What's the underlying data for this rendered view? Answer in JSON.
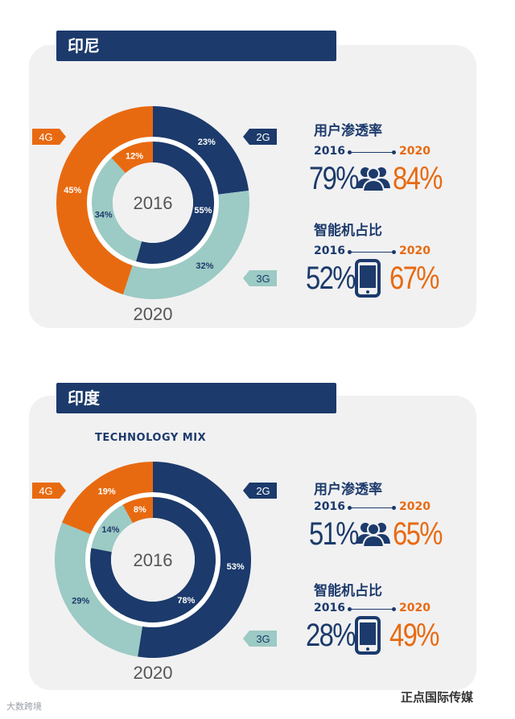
{
  "colors": {
    "navy": "#1c3a6b",
    "orange": "#e86a10",
    "teal": "#9ccac4",
    "panel": "#f1f1f2"
  },
  "sections": [
    {
      "title": "印尼",
      "subtitle": "",
      "stats": {
        "users": {
          "label": "用户渗透率",
          "year_from": "2016",
          "year_to": "2020",
          "value_from": "79%",
          "value_to": "84%",
          "icon": "users-icon"
        },
        "smartphone": {
          "label": "智能机占比",
          "year_from": "2016",
          "year_to": "2020",
          "value_from": "52%",
          "value_to": "67%",
          "icon": "smartphone-icon"
        }
      }
    },
    {
      "title": "印度",
      "subtitle": "TECHNOLOGY MIX",
      "stats": {
        "users": {
          "label": "用户渗透率",
          "year_from": "2016",
          "year_to": "2020",
          "value_from": "51%",
          "value_to": "65%",
          "icon": "users-icon"
        },
        "smartphone": {
          "label": "智能机占比",
          "year_from": "2016",
          "year_to": "2020",
          "value_from": "28%",
          "value_to": "49%",
          "icon": "smartphone-icon"
        }
      }
    }
  ],
  "chart_data": [
    {
      "type": "pie",
      "variant": "nested-donut",
      "title": "",
      "center_label": "2016",
      "outer_label": "2020",
      "categories": [
        "2G",
        "3G",
        "4G"
      ],
      "series": [
        {
          "year": "2020",
          "ring": "outer",
          "values": [
            23,
            32,
            45
          ],
          "labels": [
            "23%",
            "32%",
            "45%"
          ]
        },
        {
          "year": "2016",
          "ring": "inner",
          "values": [
            55,
            34,
            12
          ],
          "labels": [
            "55%",
            "34%",
            "12%"
          ]
        }
      ],
      "legend": [
        "2G",
        "3G",
        "4G"
      ]
    },
    {
      "type": "pie",
      "variant": "nested-donut",
      "title": "TECHNOLOGY MIX",
      "center_label": "2016",
      "outer_label": "2020",
      "categories": [
        "2G",
        "3G",
        "4G"
      ],
      "series": [
        {
          "year": "2020",
          "ring": "outer",
          "values": [
            53,
            29,
            19
          ],
          "labels": [
            "53%",
            "29%",
            "19%"
          ]
        },
        {
          "year": "2016",
          "ring": "inner",
          "values": [
            78,
            14,
            8
          ],
          "labels": [
            "78%",
            "14%",
            "8%"
          ]
        }
      ],
      "legend": [
        "2G",
        "3G",
        "4G"
      ]
    }
  ],
  "watermark": {
    "left": "大数跨境",
    "right": "正点国际传媒"
  }
}
